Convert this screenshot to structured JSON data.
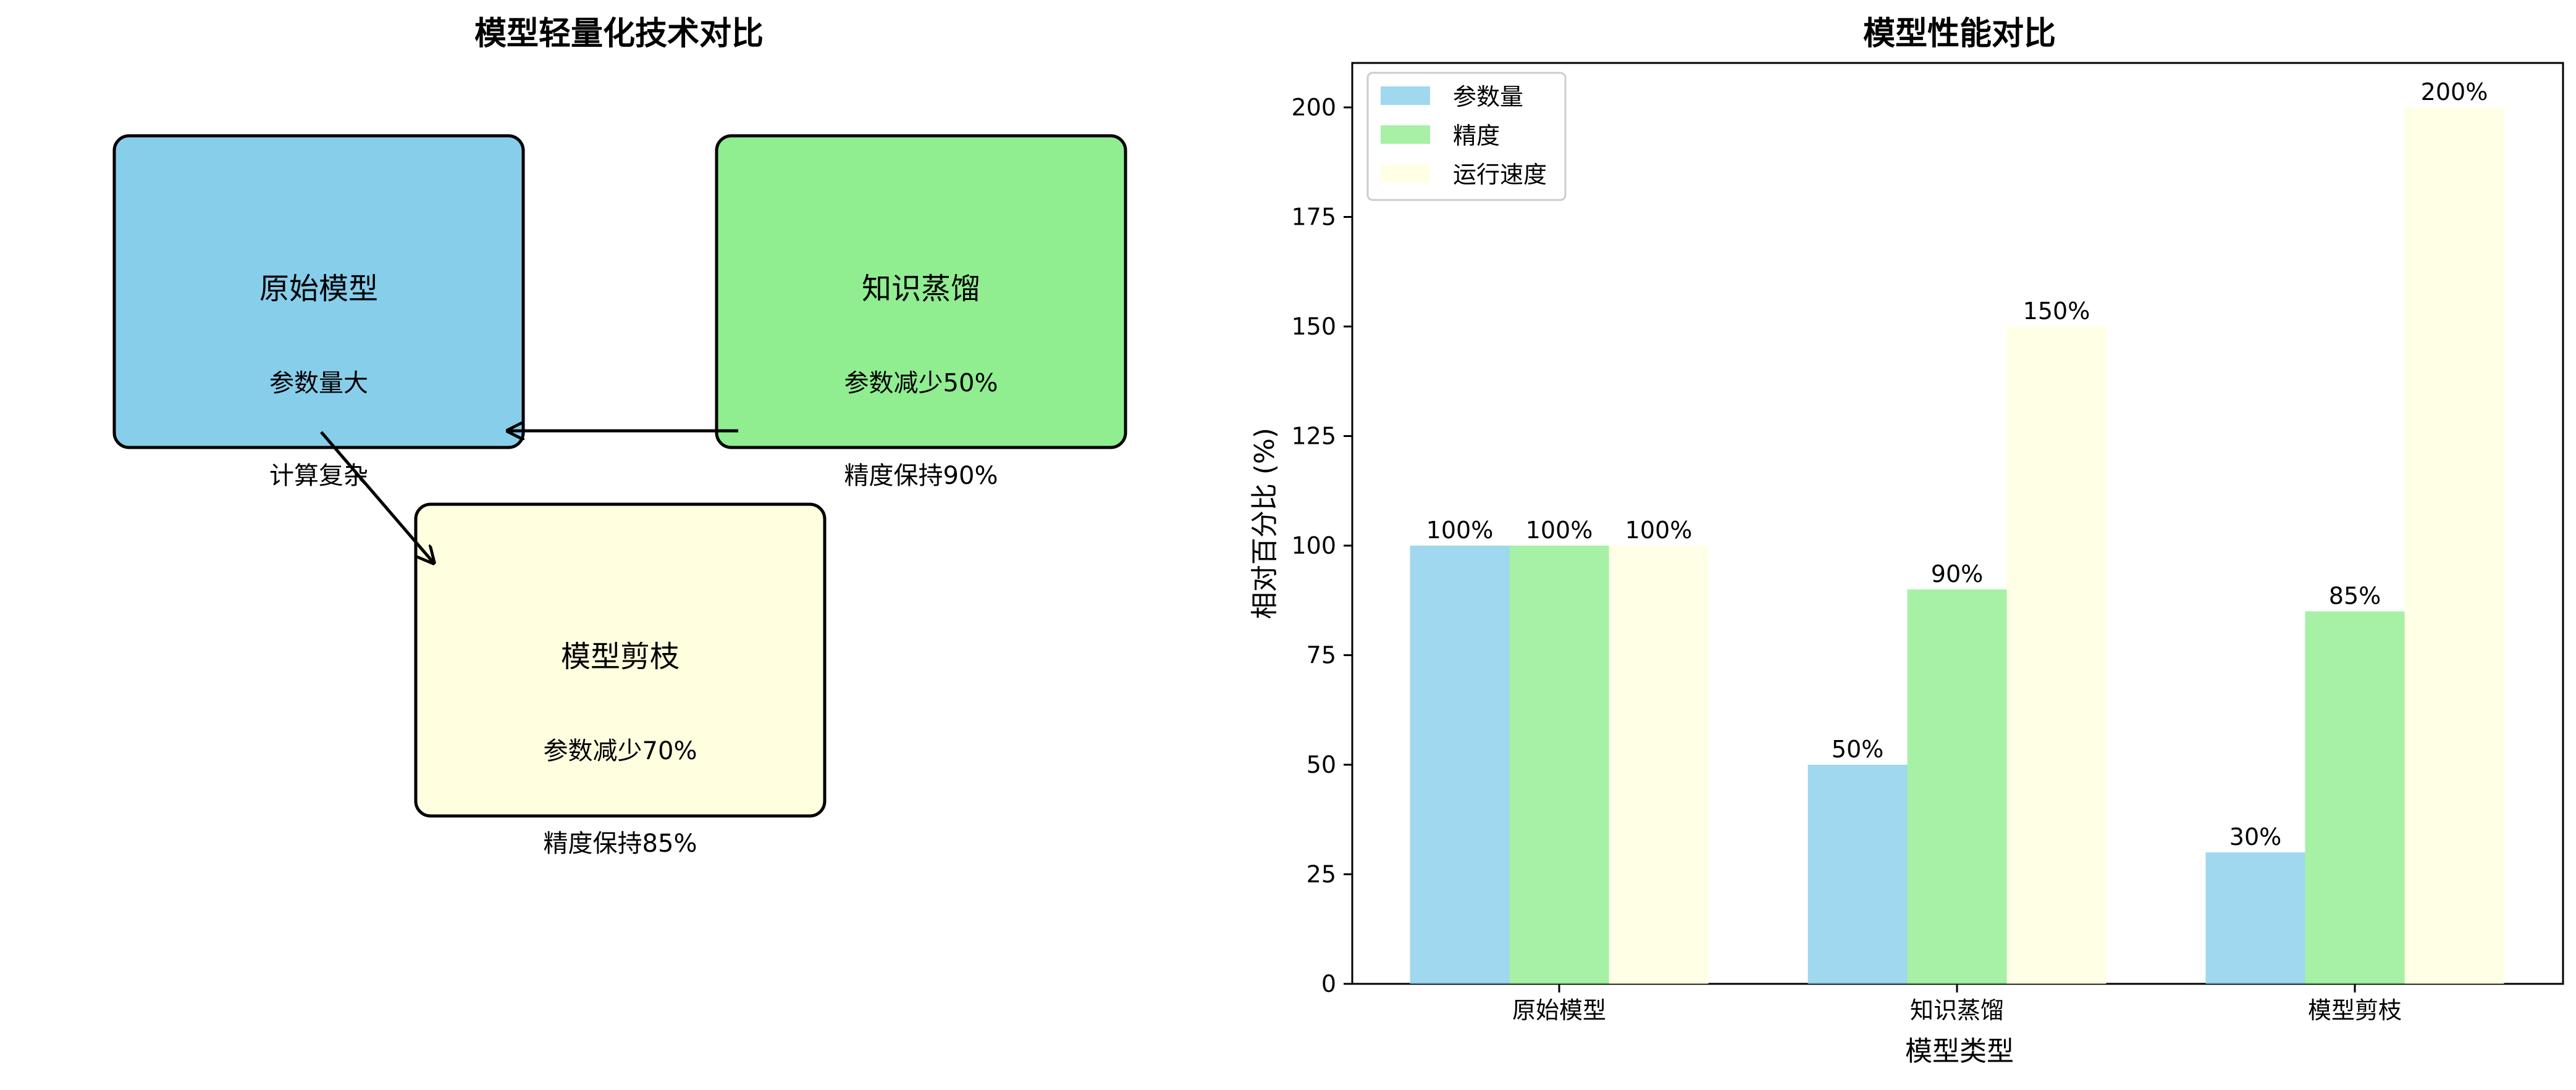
{
  "left_panel": {
    "title": "模型轻量化技术对比",
    "boxes": [
      {
        "id": "original",
        "title": "原始模型",
        "subtitle": "参数量大",
        "caption": "计算复杂",
        "color": "#87ceeb"
      },
      {
        "id": "distill",
        "title": "知识蒸馏",
        "subtitle": "参数减少50%",
        "caption": "精度保持90%",
        "color": "#90ee90"
      },
      {
        "id": "prune",
        "title": "模型剪枝",
        "subtitle": "参数减少70%",
        "caption": "精度保持85%",
        "color": "#ffffe0"
      }
    ]
  },
  "chart_data": {
    "type": "bar",
    "title": "模型性能对比",
    "xlabel": "模型类型",
    "ylabel": "相对百分比 (%)",
    "categories": [
      "原始模型",
      "知识蒸馏",
      "模型剪枝"
    ],
    "ylim": [
      0,
      210
    ],
    "yticks": [
      0,
      25,
      50,
      75,
      100,
      125,
      150,
      175,
      200
    ],
    "legend_position": "top-left",
    "series": [
      {
        "name": "参数量",
        "values": [
          100,
          50,
          30
        ],
        "labels": [
          "100%",
          "50%",
          "30%"
        ],
        "color": "#87ceeb"
      },
      {
        "name": "精度",
        "values": [
          100,
          90,
          85
        ],
        "labels": [
          "100%",
          "90%",
          "85%"
        ],
        "color": "#90ee90"
      },
      {
        "name": "运行速度",
        "values": [
          100,
          150,
          200
        ],
        "labels": [
          "100%",
          "150%",
          "200%"
        ],
        "color": "#ffffe0"
      }
    ]
  }
}
